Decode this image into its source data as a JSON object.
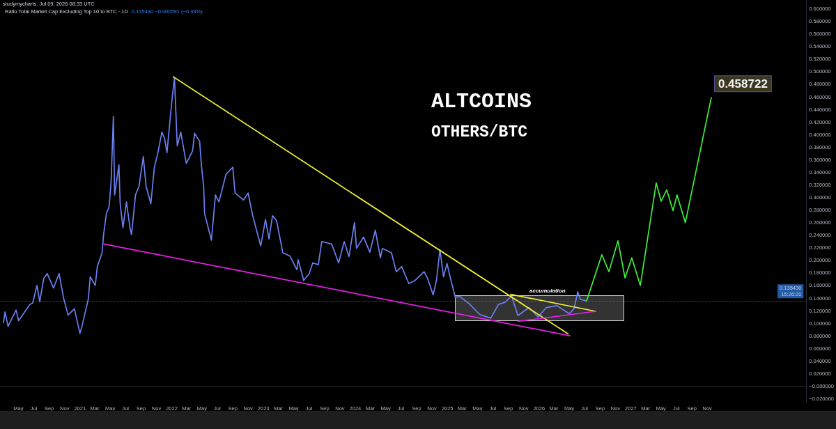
{
  "chart_data": {
    "type": "line",
    "title": "ALTCOINS",
    "subtitle": "OTHERS/BTC",
    "annotations": [
      "studymycharts, Jul 09, 2026 08:33 UTC",
      "Ratio Total Market Cap Excluding Top 10 to BTC · 1D",
      "0.135430 −0.000591 (−0.43%)",
      "accumulation"
    ],
    "marker": "none",
    "xlim": [
      "2020-02-18",
      "2028-11-29"
    ],
    "xticks": [
      {
        "value": "2020-05",
        "label": "May"
      },
      {
        "value": "2020-07",
        "label": "Jul"
      },
      {
        "value": "2020-09",
        "label": "Sep"
      },
      {
        "value": "2020-11",
        "label": "Nov"
      },
      {
        "value": "2021-01",
        "label": "2021"
      },
      {
        "value": "2021-03",
        "label": "Mar"
      },
      {
        "value": "2021-05",
        "label": "May"
      },
      {
        "value": "2021-07",
        "label": "Jul"
      },
      {
        "value": "2021-09",
        "label": "Sep"
      },
      {
        "value": "2021-11",
        "label": "Nov"
      },
      {
        "value": "2022-01",
        "label": "2022"
      },
      {
        "value": "2022-03",
        "label": "Mar"
      },
      {
        "value": "2022-05",
        "label": "May"
      },
      {
        "value": "2022-07",
        "label": "Jul"
      },
      {
        "value": "2022-09",
        "label": "Sep"
      },
      {
        "value": "2022-11",
        "label": "Nov"
      },
      {
        "value": "2023-01",
        "label": "2023"
      },
      {
        "value": "2023-03",
        "label": "Mar"
      },
      {
        "value": "2023-05",
        "label": "May"
      },
      {
        "value": "2023-07",
        "label": "Jul"
      },
      {
        "value": "2023-09",
        "label": "Sep"
      },
      {
        "value": "2023-11",
        "label": "Nov"
      },
      {
        "value": "2024-01",
        "label": "2024"
      },
      {
        "value": "2024-03",
        "label": "Mar"
      },
      {
        "value": "2024-05",
        "label": "May"
      },
      {
        "value": "2024-07",
        "label": "Jul"
      },
      {
        "value": "2024-09",
        "label": "Sep"
      },
      {
        "value": "2024-11",
        "label": "Nov"
      },
      {
        "value": "2025-01",
        "label": "2025"
      },
      {
        "value": "2025-03",
        "label": "Mar"
      },
      {
        "value": "2025-05",
        "label": "May"
      },
      {
        "value": "2025-07",
        "label": "Jul"
      },
      {
        "value": "2025-09",
        "label": "Sep"
      },
      {
        "value": "2025-11",
        "label": "Nov"
      },
      {
        "value": "2026-01",
        "label": "2026"
      },
      {
        "value": "2026-03",
        "label": "Mar"
      },
      {
        "value": "2026-05",
        "label": "May"
      },
      {
        "value": "2026-07",
        "label": "Jul"
      },
      {
        "value": "2026-09",
        "label": "Sep"
      },
      {
        "value": "2026-11",
        "label": "Nov"
      },
      {
        "value": "2027-01",
        "label": "2027"
      },
      {
        "value": "2027-03",
        "label": "Mar"
      },
      {
        "value": "2027-05",
        "label": "May"
      },
      {
        "value": "2027-07",
        "label": "Jul"
      },
      {
        "value": "2027-09",
        "label": "Sep"
      },
      {
        "value": "2027-11",
        "label": "Nov"
      }
    ],
    "ylim": [
      -0.025,
      0.614
    ],
    "yticks": [
      {
        "value": -0.02,
        "label": "−0.020000"
      },
      {
        "value": 0,
        "label": "−0.000000"
      },
      {
        "value": 0.02,
        "label": "0.020000"
      },
      {
        "value": 0.04,
        "label": "0.040000"
      },
      {
        "value": 0.06,
        "label": "0.060000"
      },
      {
        "value": 0.08,
        "label": "0.080000"
      },
      {
        "value": 0.1,
        "label": "0.100000"
      },
      {
        "value": 0.12,
        "label": "0.120000"
      },
      {
        "value": 0.14,
        "label": "0.140000"
      },
      {
        "value": 0.16,
        "label": "0.160000"
      },
      {
        "value": 0.18,
        "label": "0.180000"
      },
      {
        "value": 0.2,
        "label": "0.200000"
      },
      {
        "value": 0.22,
        "label": "0.220000"
      },
      {
        "value": 0.24,
        "label": "0.240000"
      },
      {
        "value": 0.26,
        "label": "0.260000"
      },
      {
        "value": 0.28,
        "label": "0.280000"
      },
      {
        "value": 0.3,
        "label": "0.300000"
      },
      {
        "value": 0.32,
        "label": "0.320000"
      },
      {
        "value": 0.34,
        "label": "0.340000"
      },
      {
        "value": 0.36,
        "label": "0.360000"
      },
      {
        "value": 0.38,
        "label": "0.380000"
      },
      {
        "value": 0.4,
        "label": "0.400000"
      },
      {
        "value": 0.42,
        "label": "0.420000"
      },
      {
        "value": 0.44,
        "label": "0.440000"
      },
      {
        "value": 0.46,
        "label": "0.460000"
      },
      {
        "value": 0.48,
        "label": "0.480000"
      },
      {
        "value": 0.5,
        "label": "0.500000"
      },
      {
        "value": 0.52,
        "label": "0.520000"
      },
      {
        "value": 0.54,
        "label": "0.540000"
      },
      {
        "value": 0.56,
        "label": "0.560000"
      },
      {
        "value": 0.58,
        "label": "0.580000"
      },
      {
        "value": 0.6,
        "label": "0.600000"
      }
    ],
    "ref_lines": [
      {
        "axis": "y",
        "value": 0.13543,
        "label": "0.135430\n15:26:20",
        "color": "#2f80ed",
        "line_style": "dotted"
      }
    ],
    "series": [
      {
        "color": "#6a80f0",
        "x": [
          "2020-03-03",
          "2020-03-09",
          "2020-03-21",
          "2020-04-22",
          "2020-05-02",
          "2020-06-16",
          "2020-06-27",
          "2020-07-14",
          "2020-07-25",
          "2020-08-10",
          "2020-08-24",
          "2020-09-18",
          "2020-10-10",
          "2020-10-29",
          "2020-11-15",
          "2020-12-10",
          "2021-01-01",
          "2021-01-09",
          "2021-02-03",
          "2021-02-11",
          "2021-03-03",
          "2021-03-11",
          "2021-03-30",
          "2021-04-05",
          "2021-04-16",
          "2021-04-27",
          "2021-05-05",
          "2021-05-14",
          "2021-05-19",
          "2021-05-28",
          "2021-06-05",
          "2021-06-10",
          "2021-06-21",
          "2021-07-05",
          "2021-07-19",
          "2021-07-25",
          "2021-08-10",
          "2021-08-24",
          "2021-09-10",
          "2021-09-21",
          "2021-10-10",
          "2021-10-24",
          "2021-11-07",
          "2021-11-23",
          "2021-12-04",
          "2021-12-13",
          "2022-01-01",
          "2022-01-12",
          "2022-01-23",
          "2022-02-06",
          "2022-02-28",
          "2022-03-25",
          "2022-04-02",
          "2022-04-22",
          "2022-04-30",
          "2022-05-08",
          "2022-05-12",
          "2022-06-08",
          "2022-06-24",
          "2022-07-08",
          "2022-08-05",
          "2022-09-01",
          "2022-09-10",
          "2022-10-13",
          "2022-11-01",
          "2022-11-18",
          "2022-12-21",
          "2023-01-09",
          "2023-01-23",
          "2023-02-06",
          "2023-02-22",
          "2023-03-19",
          "2023-04-16",
          "2023-05-14",
          "2023-05-19",
          "2023-06-10",
          "2023-07-02",
          "2023-07-16",
          "2023-08-07",
          "2023-08-21",
          "2023-09-29",
          "2023-10-27",
          "2023-11-18",
          "2023-12-07",
          "2023-12-29",
          "2024-01-06",
          "2024-02-03",
          "2024-02-28",
          "2024-03-21",
          "2024-04-10",
          "2024-04-18",
          "2024-05-24",
          "2024-06-12",
          "2024-07-04",
          "2024-08-01",
          "2024-08-26",
          "2024-10-01",
          "2024-10-15",
          "2024-11-06",
          "2024-11-19",
          "2024-12-03",
          "2024-12-17",
          "2024-12-31",
          "2025-01-14",
          "2025-02-02",
          "2025-02-19",
          "2025-04-01",
          "2025-05-10",
          "2025-06-23",
          "2025-07-24",
          "2025-08-17",
          "2025-09-14",
          "2025-10-09",
          "2025-11-22",
          "2025-12-28",
          "2026-01-30",
          "2026-03-13",
          "2026-05-02",
          "2026-05-21",
          "2026-06-04",
          "2026-06-15",
          "2026-07-09"
        ],
        "values": [
          0.101,
          0.118,
          0.095,
          0.121,
          0.104,
          0.13,
          0.132,
          0.16,
          0.134,
          0.171,
          0.179,
          0.156,
          0.179,
          0.138,
          0.113,
          0.123,
          0.084,
          0.095,
          0.138,
          0.174,
          0.16,
          0.19,
          0.212,
          0.241,
          0.274,
          0.285,
          0.326,
          0.429,
          0.304,
          0.329,
          0.352,
          0.29,
          0.252,
          0.293,
          0.252,
          0.241,
          0.304,
          0.318,
          0.365,
          0.318,
          0.29,
          0.348,
          0.371,
          0.404,
          0.393,
          0.371,
          0.451,
          0.49,
          0.382,
          0.404,
          0.354,
          0.374,
          0.402,
          0.389,
          0.348,
          0.318,
          0.274,
          0.232,
          0.304,
          0.293,
          0.337,
          0.348,
          0.307,
          0.296,
          0.307,
          0.273,
          0.223,
          0.265,
          0.234,
          0.271,
          0.263,
          0.212,
          0.207,
          0.185,
          0.201,
          0.168,
          0.179,
          0.196,
          0.193,
          0.23,
          0.226,
          0.196,
          0.23,
          0.206,
          0.26,
          0.219,
          0.237,
          0.213,
          0.248,
          0.204,
          0.219,
          0.212,
          0.182,
          0.19,
          0.163,
          0.168,
          0.182,
          0.171,
          0.145,
          0.168,
          0.217,
          0.174,
          0.195,
          0.171,
          0.141,
          0.143,
          0.13,
          0.114,
          0.108,
          0.13,
          0.133,
          0.143,
          0.112,
          0.125,
          0.11,
          0.125,
          0.128,
          0.115,
          0.124,
          0.15,
          0.138,
          0.13543
        ]
      },
      {
        "color": "#f0f032",
        "x": [
          "2022-01-07",
          "2026-04-27"
        ],
        "values": [
          0.492,
          0.083
        ]
      },
      {
        "color": "#f0f032",
        "x": [
          "2025-09-10",
          "2026-08-14"
        ],
        "values": [
          0.146,
          0.119
        ]
      },
      {
        "color": "#e81ee8",
        "x": [
          "2021-04-06",
          "2026-05-04"
        ],
        "values": [
          0.226,
          0.08
        ]
      },
      {
        "color": "#e81ee8",
        "x": [
          "2025-10-10",
          "2026-08-14"
        ],
        "values": [
          0.103,
          0.119
        ]
      },
      {
        "color": "#3cf03c",
        "x": [
          "2026-07-09",
          "2026-09-08",
          "2026-10-06",
          "2026-11-11",
          "2026-12-09",
          "2027-01-05",
          "2027-02-08",
          "2027-04-12",
          "2027-05-02",
          "2027-05-24",
          "2027-06-18",
          "2027-07-04",
          "2027-08-06",
          "2027-11-17"
        ],
        "values": [
          0.13543,
          0.209,
          0.182,
          0.231,
          0.172,
          0.204,
          0.16,
          0.323,
          0.294,
          0.312,
          0.279,
          0.304,
          0.26,
          0.458722
        ],
        "value_labels": [
          null,
          null,
          null,
          null,
          null,
          null,
          null,
          null,
          null,
          null,
          null,
          null,
          null,
          "0.458722"
        ]
      }
    ]
  }
}
